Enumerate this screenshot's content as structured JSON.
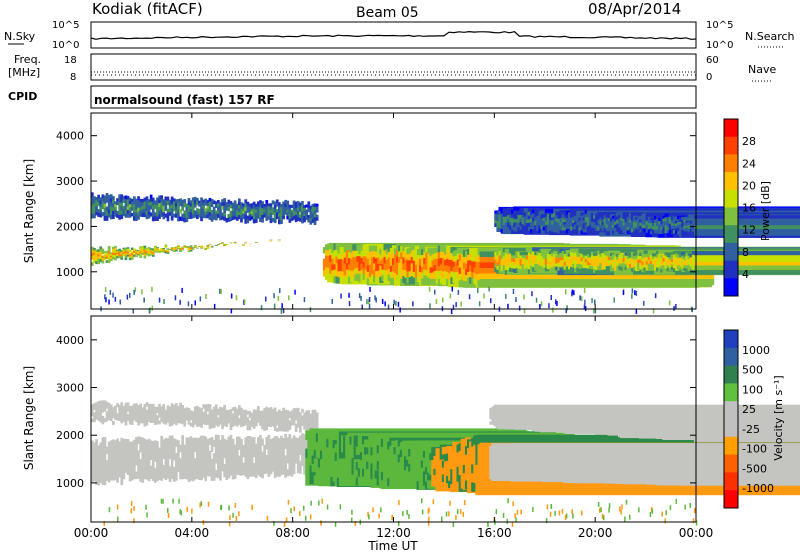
{
  "header": {
    "station": "Kodiak (fitACF)",
    "beam": "Beam 05",
    "date": "08/Apr/2014"
  },
  "panels": {
    "nsky": {
      "left_label": "N.Sky",
      "left_ticks": [
        "10^5",
        "10^0"
      ],
      "right_ticks": [
        "10^5",
        "10^0"
      ],
      "right_label": "N.Search"
    },
    "freq": {
      "left_label_1": "Freq.",
      "left_label_2": "[MHz]",
      "left_ticks": [
        "18",
        "8"
      ],
      "right_ticks": [
        "60",
        "0"
      ],
      "right_label": "Nave"
    },
    "cpid": {
      "label": "CPID",
      "text": "normalsound (fast) 157 RF"
    }
  },
  "x_axis": {
    "label": "Time UT",
    "ticks": [
      "00:00",
      "04:00",
      "08:00",
      "12:00",
      "16:00",
      "20:00",
      "00:00"
    ]
  },
  "chart_data": [
    {
      "type": "heatmap",
      "name": "power",
      "ylabel": "Slant Range [km]",
      "y_ticks": [
        "1000",
        "2000",
        "3000",
        "4000"
      ],
      "ylim": [
        180,
        4500
      ],
      "xlim_hours": [
        0,
        24
      ],
      "colorbar_label": "Power [dB]",
      "colorbar_ticks": [
        "28",
        "24",
        "20",
        "16",
        "12",
        "8",
        "4"
      ],
      "colorbar_colors": [
        "#ff0000",
        "#ff4000",
        "#ff8000",
        "#ffc000",
        "#c8e000",
        "#80c040",
        "#409060",
        "#3060a0",
        "#2030c0",
        "#0000ff"
      ],
      "bands": [
        {
          "t": [
            0,
            9
          ],
          "r0": [
            1500,
            1650
          ],
          "r1": [
            1200,
            1900
          ],
          "level": 0.75
        },
        {
          "t": [
            0,
            9
          ],
          "r0": [
            2700,
            2500
          ],
          "r1": [
            2200,
            2100
          ],
          "level": 0.35
        },
        {
          "t": [
            9.2,
            15.5
          ],
          "r0": [
            1600,
            1500
          ],
          "r1": [
            800,
            700
          ],
          "level": 0.85
        },
        {
          "t": [
            16,
            24
          ],
          "r0": [
            1500,
            1400
          ],
          "r1": [
            1000,
            1000
          ],
          "level": 0.7
        },
        {
          "t": [
            16,
            24
          ],
          "r0": [
            2400,
            2200
          ],
          "r1": [
            1900,
            1800
          ],
          "level": 0.3
        }
      ]
    },
    {
      "type": "heatmap",
      "name": "velocity",
      "ylabel": "Slant Range [km]",
      "y_ticks": [
        "1000",
        "2000",
        "3000",
        "4000"
      ],
      "ylim": [
        180,
        4500
      ],
      "xlim_hours": [
        0,
        24
      ],
      "colorbar_label": "Velocity [m s⁻¹]",
      "colorbar_ticks": [
        "1000",
        "500",
        "100",
        "25",
        "-25",
        "-100",
        "-500",
        "-1000"
      ],
      "colorbar_colors": [
        "#2040c0",
        "#3060a0",
        "#308050",
        "#60c040",
        "#c0c0c0",
        "#c0c0c0",
        "#ffa000",
        "#ff6000",
        "#ff3000",
        "#ff0000"
      ],
      "bands": [
        {
          "t": [
            0,
            9
          ],
          "r0": [
            1900,
            2000
          ],
          "r1": [
            1000,
            1200
          ],
          "v": "ground"
        },
        {
          "t": [
            0,
            9
          ],
          "r0": [
            2700,
            2500
          ],
          "r1": [
            2300,
            2100
          ],
          "v": "ground"
        },
        {
          "t": [
            8.5,
            13.5
          ],
          "r0": [
            2100,
            1800
          ],
          "r1": [
            1000,
            900
          ],
          "v": "green"
        },
        {
          "t": [
            13.5,
            15.5
          ],
          "r0": [
            1700,
            2000
          ],
          "r1": [
            900,
            800
          ],
          "v": "orange"
        },
        {
          "t": [
            15.8,
            24
          ],
          "r0": [
            1800,
            1700
          ],
          "r1": [
            1100,
            1000
          ],
          "v": "ground"
        },
        {
          "t": [
            15.8,
            24
          ],
          "r0": [
            2600,
            2200
          ],
          "r1": [
            2200,
            1900
          ],
          "v": "ground"
        }
      ]
    }
  ]
}
